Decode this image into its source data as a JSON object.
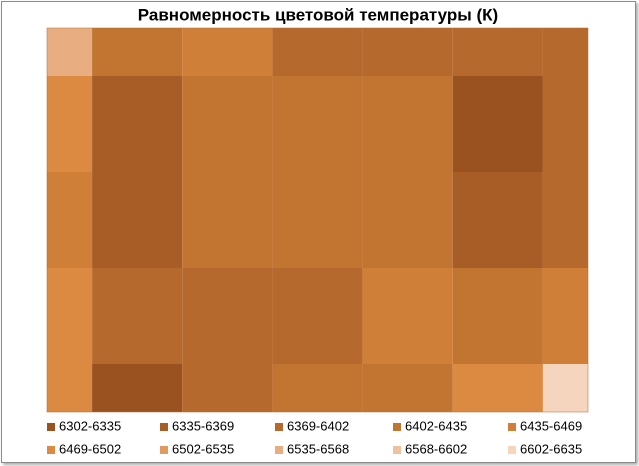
{
  "chart_data": {
    "type": "contour",
    "title": "Равномерность цветовой температуры (К)",
    "levels": [
      6302,
      6335,
      6369,
      6402,
      6435,
      6469,
      6502,
      6535,
      6568,
      6602,
      6635
    ],
    "series": [
      {
        "name": "6302-6335",
        "color": "#9a5220"
      },
      {
        "name": "6335-6369",
        "color": "#a85d27"
      },
      {
        "name": "6369-6402",
        "color": "#b5692d"
      },
      {
        "name": "6402-6435",
        "color": "#c27431"
      },
      {
        "name": "6435-6469",
        "color": "#cf7f37"
      },
      {
        "name": "6469-6502",
        "color": "#dc8a42"
      },
      {
        "name": "6502-6535",
        "color": "#e09b62"
      },
      {
        "name": "6535-6568",
        "color": "#e8ae82"
      },
      {
        "name": "6568-6602",
        "color": "#f0c1a0"
      },
      {
        "name": "6602-6635",
        "color": "#f6d5bf"
      }
    ],
    "z": [
      [
        6540,
        6420,
        6460,
        6390,
        6400,
        6400,
        6390
      ],
      [
        6470,
        6340,
        6420,
        6420,
        6410,
        6330,
        6390
      ],
      [
        6440,
        6340,
        6420,
        6410,
        6430,
        6360,
        6390
      ],
      [
        6480,
        6380,
        6400,
        6400,
        6440,
        6420,
        6440
      ],
      [
        6500,
        6310,
        6400,
        6410,
        6420,
        6470,
        6630
      ]
    ]
  }
}
